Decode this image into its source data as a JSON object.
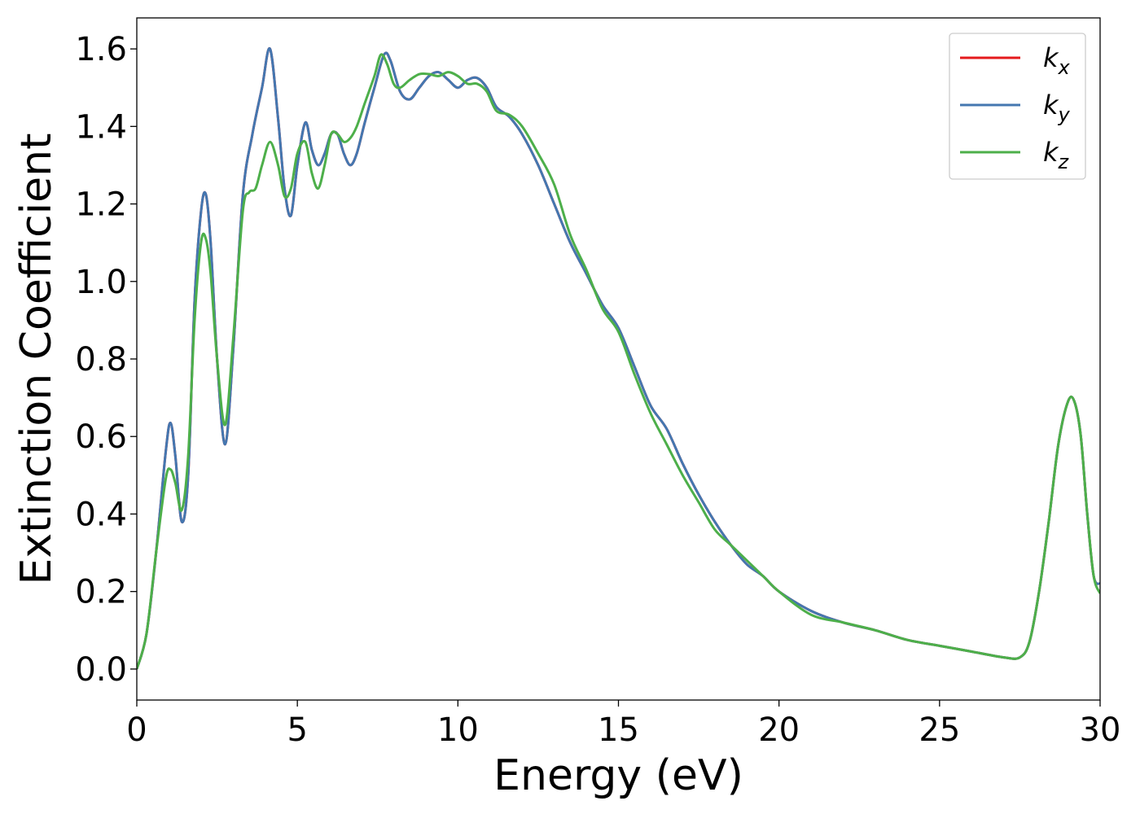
{
  "chart_data": {
    "type": "line",
    "title": "",
    "xlabel": "Energy (eV)",
    "ylabel": "Extinction Coefficient",
    "xlim": [
      0,
      30
    ],
    "ylim": [
      -0.08,
      1.68
    ],
    "xticks": [
      0,
      5,
      10,
      15,
      20,
      25,
      30
    ],
    "xtick_labels": [
      "0",
      "5",
      "10",
      "15",
      "20",
      "25",
      "30"
    ],
    "yticks": [
      0.0,
      0.2,
      0.4,
      0.6,
      0.8,
      1.0,
      1.2,
      1.4,
      1.6
    ],
    "ytick_labels": [
      "0.0",
      "0.2",
      "0.4",
      "0.6",
      "0.8",
      "1.0",
      "1.2",
      "1.4",
      "1.6"
    ],
    "grid": false,
    "legend_position": "top-right",
    "series": [
      {
        "name": "k",
        "subscript": "x",
        "color": "#e41a1c",
        "x": [
          0,
          0.3,
          0.6,
          0.9,
          1.05,
          1.2,
          1.4,
          1.6,
          1.8,
          2.0,
          2.15,
          2.3,
          2.5,
          2.75,
          3.0,
          3.3,
          3.6,
          3.9,
          4.15,
          4.4,
          4.6,
          4.8,
          5.0,
          5.25,
          5.45,
          5.65,
          5.85,
          6.05,
          6.25,
          6.45,
          6.65,
          6.85,
          7.1,
          7.4,
          7.7,
          7.9,
          8.2,
          8.5,
          8.8,
          9.1,
          9.4,
          9.7,
          10.0,
          10.3,
          10.6,
          10.9,
          11.2,
          11.6,
          12.0,
          12.5,
          13.0,
          13.5,
          14.0,
          14.5,
          15.0,
          15.5,
          16.0,
          16.5,
          17.0,
          17.5,
          18.0,
          18.5,
          19.0,
          19.5,
          20.0,
          21.0,
          22.0,
          23.0,
          24.0,
          25.0,
          26.0,
          27.0,
          27.5,
          27.8,
          28.1,
          28.4,
          28.7,
          29.0,
          29.2,
          29.4,
          29.6,
          29.8,
          30.0
        ],
        "y": [
          0.0,
          0.09,
          0.3,
          0.56,
          0.635,
          0.55,
          0.38,
          0.5,
          0.95,
          1.18,
          1.225,
          1.1,
          0.8,
          0.58,
          0.82,
          1.22,
          1.38,
          1.5,
          1.6,
          1.42,
          1.24,
          1.17,
          1.3,
          1.41,
          1.34,
          1.3,
          1.33,
          1.38,
          1.38,
          1.33,
          1.3,
          1.33,
          1.41,
          1.5,
          1.585,
          1.57,
          1.49,
          1.47,
          1.5,
          1.53,
          1.54,
          1.52,
          1.5,
          1.52,
          1.525,
          1.5,
          1.45,
          1.425,
          1.38,
          1.3,
          1.2,
          1.1,
          1.02,
          0.94,
          0.88,
          0.78,
          0.68,
          0.62,
          0.53,
          0.45,
          0.38,
          0.32,
          0.27,
          0.24,
          0.2,
          0.15,
          0.12,
          0.1,
          0.075,
          0.06,
          0.045,
          0.03,
          0.03,
          0.07,
          0.2,
          0.38,
          0.58,
          0.69,
          0.69,
          0.6,
          0.4,
          0.24,
          0.22
        ]
      },
      {
        "name": "k",
        "subscript": "y",
        "color": "#4477b0",
        "x": [
          0,
          0.3,
          0.6,
          0.9,
          1.05,
          1.2,
          1.4,
          1.6,
          1.8,
          2.0,
          2.15,
          2.3,
          2.5,
          2.75,
          3.0,
          3.3,
          3.6,
          3.9,
          4.15,
          4.4,
          4.6,
          4.8,
          5.0,
          5.25,
          5.45,
          5.65,
          5.85,
          6.05,
          6.25,
          6.45,
          6.65,
          6.85,
          7.1,
          7.4,
          7.7,
          7.9,
          8.2,
          8.5,
          8.8,
          9.1,
          9.4,
          9.7,
          10.0,
          10.3,
          10.6,
          10.9,
          11.2,
          11.6,
          12.0,
          12.5,
          13.0,
          13.5,
          14.0,
          14.5,
          15.0,
          15.5,
          16.0,
          16.5,
          17.0,
          17.5,
          18.0,
          18.5,
          19.0,
          19.5,
          20.0,
          21.0,
          22.0,
          23.0,
          24.0,
          25.0,
          26.0,
          27.0,
          27.5,
          27.8,
          28.1,
          28.4,
          28.7,
          29.0,
          29.2,
          29.4,
          29.6,
          29.8,
          30.0
        ],
        "y": [
          0.0,
          0.09,
          0.3,
          0.56,
          0.635,
          0.55,
          0.38,
          0.5,
          0.95,
          1.18,
          1.225,
          1.1,
          0.8,
          0.58,
          0.82,
          1.22,
          1.38,
          1.5,
          1.6,
          1.42,
          1.24,
          1.17,
          1.3,
          1.41,
          1.34,
          1.3,
          1.33,
          1.38,
          1.38,
          1.33,
          1.3,
          1.33,
          1.41,
          1.5,
          1.585,
          1.57,
          1.49,
          1.47,
          1.5,
          1.53,
          1.54,
          1.52,
          1.5,
          1.52,
          1.525,
          1.5,
          1.45,
          1.425,
          1.38,
          1.3,
          1.2,
          1.1,
          1.02,
          0.94,
          0.88,
          0.78,
          0.68,
          0.62,
          0.53,
          0.45,
          0.38,
          0.32,
          0.27,
          0.24,
          0.2,
          0.15,
          0.12,
          0.1,
          0.075,
          0.06,
          0.045,
          0.03,
          0.03,
          0.07,
          0.2,
          0.38,
          0.58,
          0.69,
          0.69,
          0.6,
          0.4,
          0.24,
          0.22
        ]
      },
      {
        "name": "k",
        "subscript": "z",
        "color": "#4daf4a",
        "x": [
          0,
          0.3,
          0.6,
          0.9,
          1.05,
          1.2,
          1.4,
          1.6,
          1.8,
          2.0,
          2.15,
          2.3,
          2.5,
          2.75,
          3.0,
          3.3,
          3.5,
          3.7,
          3.9,
          4.15,
          4.4,
          4.6,
          4.8,
          5.0,
          5.25,
          5.45,
          5.65,
          5.85,
          6.05,
          6.25,
          6.45,
          6.65,
          6.85,
          7.1,
          7.4,
          7.6,
          7.8,
          8.0,
          8.2,
          8.5,
          8.8,
          9.1,
          9.4,
          9.7,
          10.0,
          10.3,
          10.6,
          10.9,
          11.2,
          11.6,
          12.0,
          12.5,
          13.0,
          13.5,
          14.0,
          14.5,
          15.0,
          15.5,
          16.0,
          16.5,
          17.0,
          17.5,
          18.0,
          18.5,
          19.0,
          19.5,
          20.0,
          21.0,
          22.0,
          23.0,
          24.0,
          25.0,
          26.0,
          27.0,
          27.5,
          27.8,
          28.1,
          28.4,
          28.7,
          29.0,
          29.2,
          29.4,
          29.6,
          29.8,
          30.0
        ],
        "y": [
          0.0,
          0.09,
          0.3,
          0.49,
          0.515,
          0.48,
          0.41,
          0.55,
          0.9,
          1.1,
          1.11,
          1.02,
          0.8,
          0.63,
          0.85,
          1.18,
          1.23,
          1.24,
          1.3,
          1.36,
          1.3,
          1.22,
          1.24,
          1.33,
          1.36,
          1.28,
          1.24,
          1.3,
          1.38,
          1.38,
          1.36,
          1.37,
          1.4,
          1.46,
          1.53,
          1.585,
          1.56,
          1.51,
          1.5,
          1.52,
          1.535,
          1.535,
          1.53,
          1.54,
          1.53,
          1.51,
          1.51,
          1.49,
          1.44,
          1.43,
          1.4,
          1.33,
          1.25,
          1.12,
          1.03,
          0.93,
          0.87,
          0.76,
          0.66,
          0.58,
          0.5,
          0.43,
          0.36,
          0.32,
          0.28,
          0.24,
          0.2,
          0.14,
          0.12,
          0.1,
          0.075,
          0.06,
          0.045,
          0.03,
          0.03,
          0.07,
          0.2,
          0.38,
          0.58,
          0.69,
          0.69,
          0.6,
          0.4,
          0.24,
          0.195
        ]
      }
    ]
  }
}
